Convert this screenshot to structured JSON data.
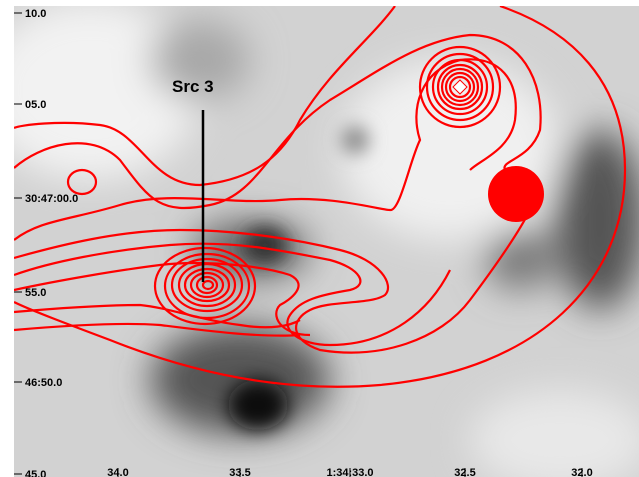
{
  "figure": {
    "annotation": "Src 3",
    "y_labels": [
      "10.0",
      "05.0",
      "30:47:00.0",
      "55.0",
      "46:50.0",
      "45.0"
    ],
    "x_labels": [
      "34.0",
      "33.5",
      "1:34:33.0",
      "32.5",
      "32.0"
    ]
  }
}
